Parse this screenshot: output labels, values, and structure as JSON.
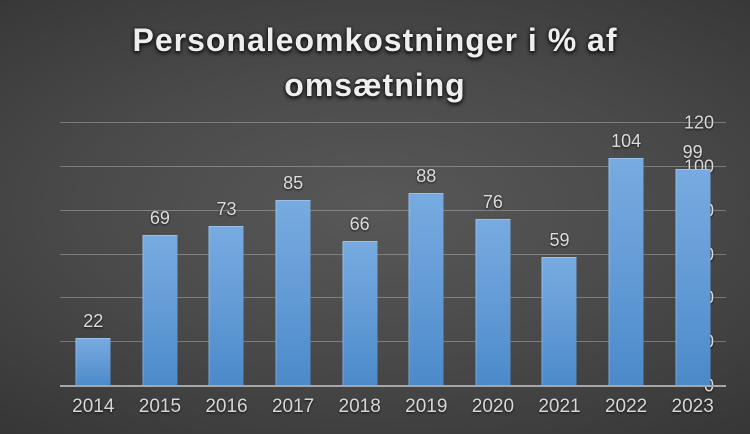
{
  "slide": {
    "title_lines": [
      "Personaleomkostninger i % af",
      "omsætning"
    ]
  },
  "chart_data": {
    "type": "bar",
    "title": "Personaleomkostninger i % af omsætning",
    "categories": [
      "2014",
      "2015",
      "2016",
      "2017",
      "2018",
      "2019",
      "2020",
      "2021",
      "2022",
      "2023"
    ],
    "values": [
      22,
      69,
      73,
      85,
      66,
      88,
      76,
      59,
      104,
      99
    ],
    "xlabel": "",
    "ylabel": "",
    "ylim": [
      0,
      120
    ],
    "yticks": [
      0,
      20,
      40,
      60,
      80,
      100,
      120
    ],
    "grid": true,
    "legend": false,
    "data_labels": true,
    "colors": {
      "bar_top": "#77abe0",
      "bar_bottom": "#4b89c9",
      "background_center": "#585858",
      "background_edge": "#1f1f1f",
      "gridline": "rgba(255,255,255,0.28)",
      "axis_line": "#a6a6a6",
      "tick_label": "#d8d8d8",
      "title_text": "#eeeeee"
    }
  }
}
